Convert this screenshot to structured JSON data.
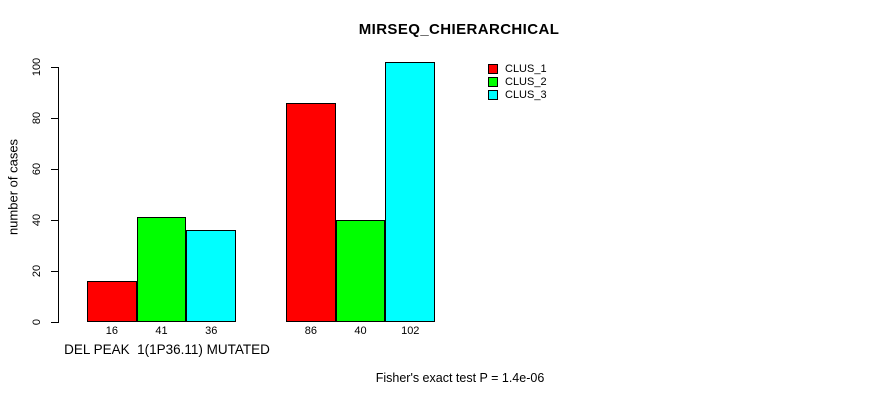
{
  "chart_data": {
    "type": "bar",
    "title": "MIRSEQ_CHIERARCHICAL",
    "ylabel": "number of cases",
    "xlabel": "DEL PEAK  1(1P36.11) MUTATED",
    "annotation": "Fisher's exact test P = 1.4e-06",
    "ylim": [
      0,
      105
    ],
    "yticks": [
      0,
      20,
      40,
      60,
      80,
      100
    ],
    "grid": false,
    "legend_position": "top-right",
    "background_color": "#ffffff",
    "axis_color": "#000000",
    "categories": [
      "DEL PEAK  1(1P36.11) MUTATED",
      ""
    ],
    "series": [
      {
        "name": "CLUS_1",
        "color": "#ff0000",
        "values": [
          16,
          86
        ]
      },
      {
        "name": "CLUS_2",
        "color": "#00ff00",
        "values": [
          41,
          40
        ]
      },
      {
        "name": "CLUS_3",
        "color": "#00ffff",
        "values": [
          36,
          102
        ]
      }
    ],
    "bar_value_labels": [
      [
        "16",
        "41",
        "36"
      ],
      [
        "86",
        "40",
        "102"
      ]
    ]
  }
}
